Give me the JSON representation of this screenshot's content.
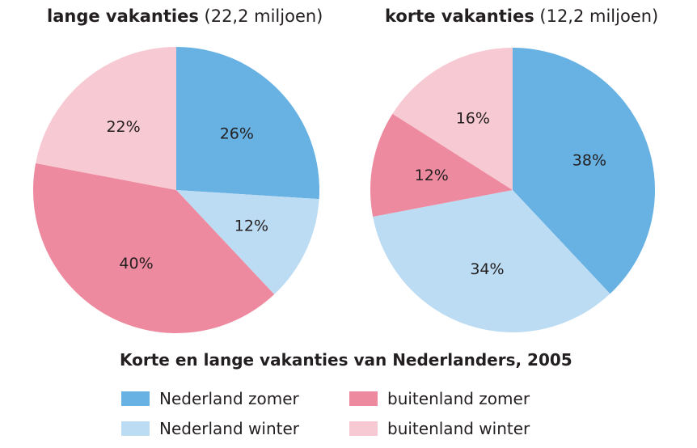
{
  "colors": {
    "Nederland zomer": "#67b1e3",
    "Nederland winter": "#bcdcf3",
    "buitenland zomer": "#ee8a9f",
    "buitenland winter": "#f7c9d2"
  },
  "chart_data": {
    "type": "pie",
    "title": "Korte en lange vakanties van Nederlanders, 2005",
    "legend": [
      "Nederland zomer",
      "Nederland winter",
      "buitenland zomer",
      "buitenland winter"
    ],
    "pies": [
      {
        "title_bold": "lange vakanties",
        "title_rest": " (22,2 miljoen)",
        "slices": [
          {
            "category": "Nederland zomer",
            "value": 26,
            "label": "26%"
          },
          {
            "category": "Nederland winter",
            "value": 12,
            "label": "12%"
          },
          {
            "category": "buitenland zomer",
            "value": 40,
            "label": "40%"
          },
          {
            "category": "buitenland winter",
            "value": 22,
            "label": "22%"
          }
        ]
      },
      {
        "title_bold": "korte vakanties",
        "title_rest": " (12,2 miljoen)",
        "slices": [
          {
            "category": "Nederland zomer",
            "value": 38,
            "label": "38%"
          },
          {
            "category": "Nederland winter",
            "value": 34,
            "label": "34%"
          },
          {
            "category": "buitenland zomer",
            "value": 12,
            "label": "12%"
          },
          {
            "category": "buitenland winter",
            "value": 16,
            "label": "16%"
          }
        ]
      }
    ]
  }
}
